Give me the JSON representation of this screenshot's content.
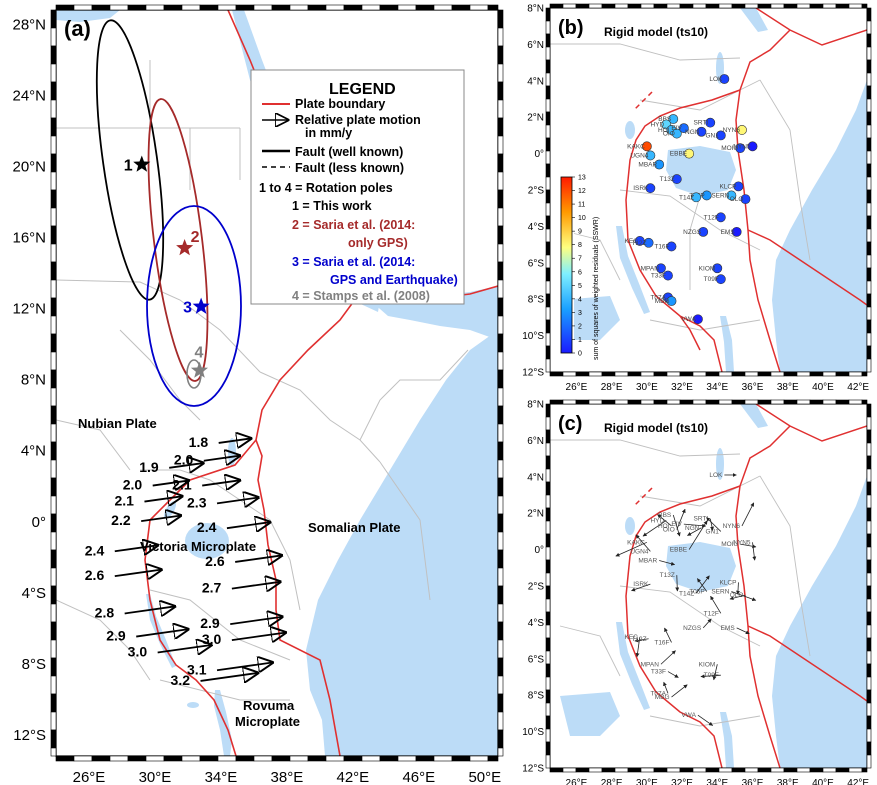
{
  "panel_a": {
    "label": "(a)",
    "lat_ticks": [
      "28°N",
      "24°N",
      "20°N",
      "16°N",
      "12°N",
      "8°N",
      "4°N",
      "0°",
      "4°S",
      "8°S",
      "12°S"
    ],
    "lon_ticks": [
      "26°E",
      "30°E",
      "34°E",
      "38°E",
      "42°E",
      "46°E",
      "50°E"
    ],
    "plates": {
      "nubian": "Nubian Plate",
      "victoria": "Victoria Microplate",
      "somalian": "Somalian Plate",
      "rovuma_1": "Rovuma",
      "rovuma_2": "Microplate"
    },
    "legend": {
      "title": "LEGEND",
      "plate_boundary": "Plate boundary",
      "relative_motion_1": "Relative plate motion",
      "relative_motion_2": "in mm/y",
      "fault_known": "Fault (well known)",
      "fault_less": "Fault (less known)",
      "poles_header": "1 to 4 =  Rotation poles",
      "pole1": "1 = This work",
      "pole2_1": "2 = Saria et al. (2014:",
      "pole2_2": "only GPS)",
      "pole3_1": "3 = Saria et al. (2014:",
      "pole3_2": "GPS and Earthquake)",
      "pole4": "4 = Stamps et al. (2008)"
    },
    "poles": [
      {
        "id": "1",
        "lon": 29.2,
        "lat": 20.1,
        "color": "#000000"
      },
      {
        "id": "2",
        "lon": 31.8,
        "lat": 15.4,
        "color": "#a52a2a"
      },
      {
        "id": "3",
        "lon": 32.8,
        "lat": 12.1,
        "color": "#0000cc"
      },
      {
        "id": "4",
        "lon": 32.7,
        "lat": 8.5,
        "color": "#808080"
      }
    ],
    "motion_values": [
      {
        "label": "1.8",
        "lon": 33.5,
        "lat": 4.2
      },
      {
        "label": "2.0",
        "lon": 32.6,
        "lat": 3.2
      },
      {
        "label": "1.9",
        "lon": 30.5,
        "lat": 2.8
      },
      {
        "label": "2.0",
        "lon": 29.5,
        "lat": 1.8
      },
      {
        "label": "2.1",
        "lon": 32.5,
        "lat": 1.8
      },
      {
        "label": "2.1",
        "lon": 29.0,
        "lat": 0.9
      },
      {
        "label": "2.3",
        "lon": 33.4,
        "lat": 0.8
      },
      {
        "label": "2.2",
        "lon": 28.8,
        "lat": -0.2
      },
      {
        "label": "2.4",
        "lon": 34.0,
        "lat": -0.6
      },
      {
        "label": "2.4",
        "lon": 27.2,
        "lat": -1.9
      },
      {
        "label": "2.6",
        "lon": 34.5,
        "lat": -2.5
      },
      {
        "label": "2.6",
        "lon": 27.2,
        "lat": -3.3
      },
      {
        "label": "2.7",
        "lon": 34.3,
        "lat": -4.0
      },
      {
        "label": "2.8",
        "lon": 27.8,
        "lat": -5.4
      },
      {
        "label": "2.9",
        "lon": 34.2,
        "lat": -6.0
      },
      {
        "label": "2.9",
        "lon": 28.5,
        "lat": -6.7
      },
      {
        "label": "3.0",
        "lon": 34.3,
        "lat": -6.9
      },
      {
        "label": "3.0",
        "lon": 29.8,
        "lat": -7.6
      },
      {
        "label": "3.1",
        "lon": 33.4,
        "lat": -8.6
      },
      {
        "label": "3.2",
        "lon": 32.4,
        "lat": -9.2
      }
    ]
  },
  "panel_b": {
    "label": "(b)",
    "title": "Rigid model (ts10)",
    "lat_ticks": [
      "8°N",
      "6°N",
      "4°N",
      "2°N",
      "0°",
      "2°S",
      "4°S",
      "6°S",
      "8°S",
      "10°S",
      "12°S"
    ],
    "lon_ticks": [
      "26°E",
      "28°E",
      "30°E",
      "32°E",
      "34°E",
      "36°E",
      "38°E",
      "40°E",
      "42°E"
    ],
    "colorbar_ticks": [
      "13",
      "12",
      "11",
      "10",
      "9",
      "8",
      "7",
      "6",
      "5",
      "4",
      "3",
      "2",
      "1",
      "0"
    ],
    "colorbar_label": "sum of squares of weighted residuals (SSWR)",
    "colorbar_range": [
      0,
      13
    ]
  },
  "panel_c": {
    "label": "(c)",
    "title": "Rigid model (ts10)",
    "lat_ticks": [
      "8°N",
      "6°N",
      "4°N",
      "2°N",
      "0°",
      "2°S",
      "4°S",
      "6°S",
      "8°S",
      "10°S",
      "12°S"
    ],
    "lon_ticks": [
      "26°E",
      "28°E",
      "30°E",
      "32°E",
      "34°E",
      "36°E",
      "38°E",
      "40°E",
      "42°E"
    ]
  },
  "stations": [
    {
      "name": "LOK",
      "lon": 34.4,
      "lat": 4.1,
      "sswr": 1
    },
    {
      "name": "BBS",
      "lon": 31.5,
      "lat": 1.9,
      "sswr": 4
    },
    {
      "name": "HYD",
      "lon": 31.1,
      "lat": 1.6,
      "sswr": 5
    },
    {
      "name": "HOI",
      "lon": 31.4,
      "lat": 1.3,
      "sswr": 4
    },
    {
      "name": "OIO",
      "lon": 31.7,
      "lat": 1.1,
      "sswr": 4
    },
    {
      "name": "EIV",
      "lon": 32.1,
      "lat": 1.4,
      "sswr": 2
    },
    {
      "name": "SRTI",
      "lon": 33.6,
      "lat": 1.7,
      "sswr": 1
    },
    {
      "name": "NGN",
      "lon": 33.1,
      "lat": 1.2,
      "sswr": 1
    },
    {
      "name": "GN1",
      "lon": 34.2,
      "lat": 1.0,
      "sswr": 1
    },
    {
      "name": "NYN6",
      "lon": 35.4,
      "lat": 1.3,
      "sswr": 8
    },
    {
      "name": "MOIU",
      "lon": 35.3,
      "lat": 0.3,
      "sswr": 1
    },
    {
      "name": "NYN5",
      "lon": 36.0,
      "lat": 0.4,
      "sswr": 0
    },
    {
      "name": "KAKC",
      "lon": 30.0,
      "lat": 0.4,
      "sswr": 12
    },
    {
      "name": "UGN4",
      "lon": 30.2,
      "lat": -0.1,
      "sswr": 4
    },
    {
      "name": "EBBE",
      "lon": 32.4,
      "lat": 0.0,
      "sswr": 8
    },
    {
      "name": "MBAR",
      "lon": 30.7,
      "lat": -0.6,
      "sswr": 3
    },
    {
      "name": "T13Z",
      "lon": 31.7,
      "lat": -1.4,
      "sswr": 1
    },
    {
      "name": "ISRK",
      "lon": 30.2,
      "lat": -1.9,
      "sswr": 1
    },
    {
      "name": "T05P",
      "lon": 33.4,
      "lat": -2.3,
      "sswr": 3
    },
    {
      "name": "T14Z",
      "lon": 32.8,
      "lat": -2.4,
      "sswr": 4
    },
    {
      "name": "SERN",
      "lon": 34.8,
      "lat": -2.3,
      "sswr": 4
    },
    {
      "name": "KLCP",
      "lon": 35.2,
      "lat": -1.8,
      "sswr": 1
    },
    {
      "name": "OLO",
      "lon": 35.6,
      "lat": -2.5,
      "sswr": 1
    },
    {
      "name": "T12F",
      "lon": 34.2,
      "lat": -3.5,
      "sswr": 1
    },
    {
      "name": "NZGS",
      "lon": 33.2,
      "lat": -4.3,
      "sswr": 1
    },
    {
      "name": "EMS",
      "lon": 35.1,
      "lat": -4.3,
      "sswr": 0
    },
    {
      "name": "KEC",
      "lon": 29.6,
      "lat": -4.8,
      "sswr": 1
    },
    {
      "name": "T12Z",
      "lon": 30.1,
      "lat": -4.9,
      "sswr": 2
    },
    {
      "name": "T16F",
      "lon": 31.4,
      "lat": -5.1,
      "sswr": 1
    },
    {
      "name": "MPAN",
      "lon": 30.8,
      "lat": -6.3,
      "sswr": 1
    },
    {
      "name": "T33F",
      "lon": 31.2,
      "lat": -6.7,
      "sswr": 1
    },
    {
      "name": "KIOM",
      "lon": 34.0,
      "lat": -6.3,
      "sswr": 1
    },
    {
      "name": "T09F",
      "lon": 34.2,
      "lat": -6.9,
      "sswr": 1
    },
    {
      "name": "T07A",
      "lon": 31.2,
      "lat": -7.9,
      "sswr": 1
    },
    {
      "name": "MBG",
      "lon": 31.4,
      "lat": -8.1,
      "sswr": 3
    },
    {
      "name": "VWA",
      "lon": 32.9,
      "lat": -9.1,
      "sswr": 0
    }
  ],
  "colors": {
    "water": "#bcdcf7",
    "plate_boundary": "#e03030",
    "lakes": "#a9d0f5"
  }
}
